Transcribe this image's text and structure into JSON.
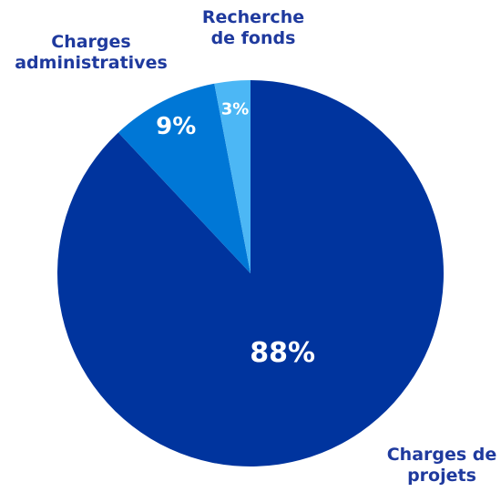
{
  "chart_data": {
    "type": "pie",
    "categories": [
      "Charges de projets",
      "Charges administratives",
      "Recherche de fonds"
    ],
    "values": [
      88,
      9,
      3
    ],
    "value_labels": [
      "88%",
      "9%",
      "3%"
    ],
    "colors": [
      "#00349e",
      "#0077d6",
      "#4cb7f5"
    ]
  }
}
